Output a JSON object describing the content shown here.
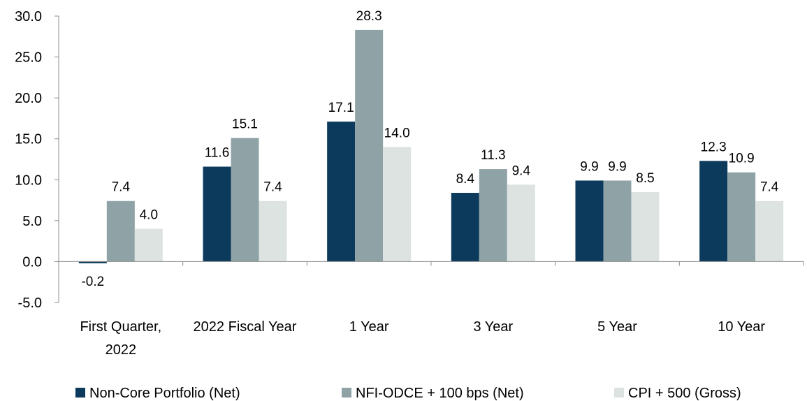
{
  "chart_data": {
    "type": "bar",
    "categories": [
      [
        "First Quarter,",
        "2022"
      ],
      [
        "2022 Fiscal Year"
      ],
      [
        "1 Year"
      ],
      [
        "3 Year"
      ],
      [
        "5 Year"
      ],
      [
        "10 Year"
      ]
    ],
    "series": [
      {
        "name": "Non-Core Portfolio (Net)",
        "color": "#0b3a5c",
        "values": [
          -0.2,
          11.6,
          17.1,
          8.4,
          9.9,
          12.3
        ]
      },
      {
        "name": "NFI-ODCE + 100 bps (Net)",
        "color": "#8fa3a6",
        "values": [
          7.4,
          15.1,
          28.3,
          11.3,
          9.9,
          10.9
        ]
      },
      {
        "name": "CPI + 500 (Gross)",
        "color": "#dde3e1",
        "values": [
          4.0,
          7.4,
          14.0,
          9.4,
          8.5,
          7.4
        ]
      }
    ],
    "ylim": [
      -5.0,
      30.0
    ],
    "yticks": [
      -5.0,
      0.0,
      5.0,
      10.0,
      15.0,
      20.0,
      25.0,
      30.0
    ],
    "ytick_labels": [
      "-5.0",
      "0.0",
      "5.0",
      "10.0",
      "15.0",
      "20.0",
      "25.0",
      "30.0"
    ],
    "data_labels": [
      [
        "-0.2",
        "11.6",
        "17.1",
        "8.4",
        "9.9",
        "12.3"
      ],
      [
        "7.4",
        "15.1",
        "28.3",
        "11.3",
        "9.9",
        "10.9"
      ],
      [
        "4.0",
        "7.4",
        "14.0",
        "9.4",
        "8.5",
        "7.4"
      ]
    ],
    "title": "",
    "xlabel": "",
    "ylabel": "",
    "grid": false,
    "legend_position": "bottom"
  }
}
